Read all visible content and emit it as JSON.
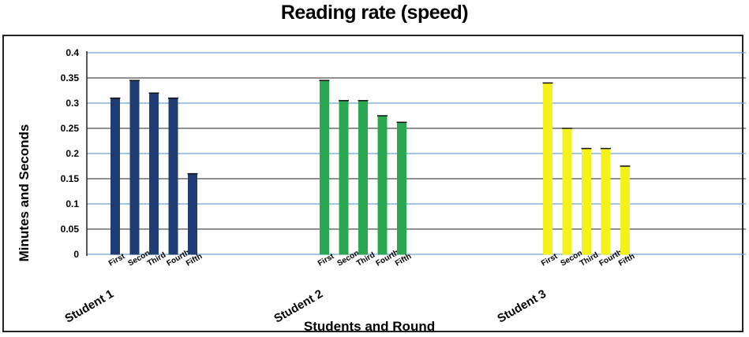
{
  "chart_data": {
    "type": "bar",
    "title": "Reading rate (speed)",
    "xlabel": "Students and Round",
    "ylabel": "Minutes and Seconds",
    "ylim": [
      0,
      0.4
    ],
    "yticks": [
      "0",
      "0.05",
      "0.1",
      "0.15",
      "0.2",
      "0.25",
      "0.3",
      "0.35",
      "0.4"
    ],
    "grid": true,
    "categories": [
      "First",
      "Second",
      "Third",
      "Fourth",
      "Fifth"
    ],
    "groups": [
      {
        "label": "Student 1",
        "color": "#1f3d73",
        "values": [
          0.31,
          0.345,
          0.32,
          0.31,
          0.16
        ]
      },
      {
        "label": "Student 2",
        "color": "#2aa84f",
        "values": [
          0.345,
          0.305,
          0.305,
          0.275,
          0.262
        ]
      },
      {
        "label": "Student 3",
        "color": "#f4f21a",
        "values": [
          0.34,
          0.25,
          0.21,
          0.21,
          0.175
        ]
      }
    ]
  }
}
